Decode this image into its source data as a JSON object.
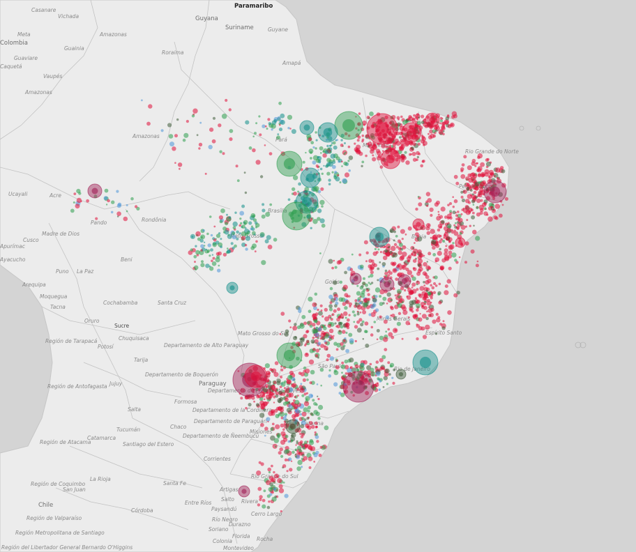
{
  "colors": {
    "ocean": "#d4d4d4",
    "land": "#ececec",
    "border": "#b9b9b9",
    "coast": "#c6c6c6",
    "red": "#e0103a",
    "green": "#2e9e4f",
    "blue": "#4d95d9",
    "teal": "#138f8a",
    "dark": "#3f5d3a",
    "purple": "#a01e55"
  },
  "labels": {
    "paramaribo": "Paramaribo",
    "casanare": "Casanare",
    "vichada": "Vichada",
    "meta": "Meta",
    "colombia": "Colombia",
    "guaviare": "Guaviare",
    "caqueta": "Caquetá",
    "guainia": "Guainia",
    "vaupes": "Vaupés",
    "amazonas_col": "Amazonas",
    "amazonas_ven": "Amazonas",
    "guyana": "Guyana",
    "suriname": "Suriname",
    "guyane": "Guyane",
    "amapa": "Amapá",
    "roraima": "Roraima",
    "amazonas_br": "Amazonas",
    "para": "Pará",
    "maranhao": "Maranhão",
    "rio_grande_do_norte": "Rio Grande do Norte",
    "pernambuco": "Pernambuco",
    "acre": "Acre",
    "ucayali": "Ucayali",
    "rondonia": "Rondônia",
    "pando": "Pando",
    "madre_de_dios": "Madre de Dios",
    "cusco": "Cusco",
    "apurimac": "Apurímac",
    "ayacucho": "Ayacucho",
    "puno": "Puno",
    "la_paz": "La Paz",
    "beni": "Beni",
    "arequipa": "Arequipa",
    "moquegua": "Moquegua",
    "tacna": "Tacna",
    "oruro": "Oruro",
    "cochabamba": "Cochabamba",
    "santa_cruz": "Santa Cruz",
    "sucre": "Sucre",
    "chuquisaca": "Chuquisaca",
    "potosi": "Potosí",
    "tarija": "Tarija",
    "region_tarapaca": "Región de Tarapacá",
    "region_antofagasta": "Región de Antofagasta",
    "region_atacama": "Región de Atacama",
    "mato_grosso": "Mato Grosso",
    "bahia": "Bahia",
    "goias": "Goiás",
    "brasilia": "Brasília",
    "minas_gerais": "Minas Gerais",
    "espirito_santo": "Espírito Santo",
    "mato_grosso_do_sul": "Mato Grosso do Sul",
    "sao_paulo": "São Paulo",
    "rio_de_janeiro": "Rio de Janeiro",
    "parana": "Paraná",
    "santa_catarina": "Santa Catarina",
    "rio_grande_do_sul": "Rio Grande do Sul",
    "alto_paraguay": "Departamento de Alto Paraguay",
    "boqueron": "Departamento de Boquerón",
    "paraguay": "Paraguay",
    "presidente_hayes": "Departamento de Presidente Hayes",
    "cordillera": "Departamento de la Cordillera",
    "dep_paraguari": "Departamento de Paraguarí",
    "neembucu": "Departamento de Ñeembucú",
    "formosa": "Formosa",
    "chaco": "Chaco",
    "misiones": "Misiones",
    "jujuy": "Jujuy",
    "salta": "Salta",
    "tucuman": "Tucumán",
    "catamarca": "Catamarca",
    "santiago_del_estero": "Santiago del Estero",
    "corrientes": "Corrientes",
    "la_rioja": "La Rioja",
    "santa_fe": "Santa Fe",
    "san_juan": "San Juan",
    "cordoba": "Córdoba",
    "entre_rios": "Entre Ríos",
    "chile": "Chile",
    "region_coquimbo": "Región de Coquimbo",
    "region_valparaiso": "Región de Valparaíso",
    "region_metropolitana": "Región Metropolitana de Santiago",
    "region_ohiggins": "Región del Libertador General Bernardo O'Higgins",
    "artigas": "Artigas",
    "salto": "Salto",
    "rivera": "Rivera",
    "paysandu": "Paysandú",
    "rio_negro": "Río Negro",
    "durazno": "Durazno",
    "cerro_largo": "Cerro Largo",
    "soriano": "Soriano",
    "florida": "Florida",
    "colonia": "Colonia",
    "rocha": "Rocha",
    "montevideo": "Montevideo"
  },
  "map_layers": [
    "land",
    "borders",
    "labels",
    "circles"
  ]
}
